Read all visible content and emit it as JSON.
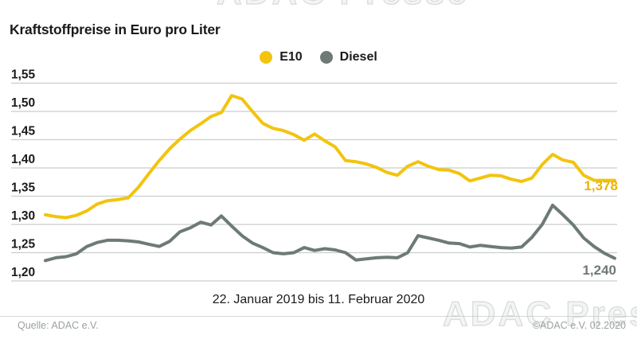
{
  "title": "Kraftstoffpreise in Euro pro Liter",
  "subtitle": "22. Januar 2019 bis 11. Februar 2020",
  "watermark": "ADAC Presse",
  "footer": {
    "source": "Quelle: ADAC e.V.",
    "copyright": "©ADAC e.V.  02.2020"
  },
  "colors": {
    "background": "#ffffff",
    "e10_yellow": "#f2c40e",
    "diesel_gray": "#6e7a75",
    "gridline": "#c9cdcc",
    "text": "#1a1a1a",
    "muted_text": "#9ba1a0"
  },
  "chart_data": {
    "type": "line",
    "title": "Kraftstoffpreise in Euro pro Liter",
    "xlabel": "22. Januar 2019 bis 11. Februar 2020",
    "ylabel": "Euro pro Liter",
    "ylim": [
      1.2,
      1.55
    ],
    "grid": true,
    "legend_position": "top-center",
    "yticks": [
      {
        "v": 1.55,
        "label": "1,55"
      },
      {
        "v": 1.5,
        "label": "1,50"
      },
      {
        "v": 1.45,
        "label": "1,45"
      },
      {
        "v": 1.4,
        "label": "1,40"
      },
      {
        "v": 1.35,
        "label": "1,35"
      },
      {
        "v": 1.3,
        "label": "1,30"
      },
      {
        "v": 1.25,
        "label": "1,25"
      },
      {
        "v": 1.2,
        "label": "1,20"
      }
    ],
    "series": [
      {
        "name": "E10",
        "color": "#f2c40e",
        "end_label": "1,378",
        "end_value": 1.378,
        "values": [
          1.317,
          1.314,
          1.312,
          1.316,
          1.324,
          1.336,
          1.342,
          1.344,
          1.347,
          1.366,
          1.39,
          1.413,
          1.434,
          1.451,
          1.466,
          1.478,
          1.491,
          1.498,
          1.528,
          1.522,
          1.5,
          1.479,
          1.47,
          1.466,
          1.459,
          1.449,
          1.46,
          1.448,
          1.437,
          1.413,
          1.411,
          1.407,
          1.401,
          1.392,
          1.387,
          1.403,
          1.411,
          1.403,
          1.397,
          1.396,
          1.39,
          1.377,
          1.382,
          1.387,
          1.386,
          1.38,
          1.376,
          1.382,
          1.406,
          1.424,
          1.414,
          1.41,
          1.387,
          1.378,
          1.378,
          1.378
        ]
      },
      {
        "name": "Diesel",
        "color": "#6e7a75",
        "end_label": "1,240",
        "end_value": 1.24,
        "values": [
          1.236,
          1.241,
          1.243,
          1.248,
          1.261,
          1.268,
          1.272,
          1.272,
          1.271,
          1.269,
          1.265,
          1.261,
          1.27,
          1.287,
          1.294,
          1.304,
          1.299,
          1.315,
          1.297,
          1.28,
          1.267,
          1.259,
          1.25,
          1.248,
          1.25,
          1.259,
          1.254,
          1.257,
          1.255,
          1.25,
          1.237,
          1.239,
          1.241,
          1.242,
          1.241,
          1.25,
          1.28,
          1.276,
          1.272,
          1.267,
          1.266,
          1.26,
          1.263,
          1.261,
          1.259,
          1.258,
          1.26,
          1.277,
          1.3,
          1.334,
          1.317,
          1.299,
          1.276,
          1.261,
          1.249,
          1.24
        ]
      }
    ]
  }
}
